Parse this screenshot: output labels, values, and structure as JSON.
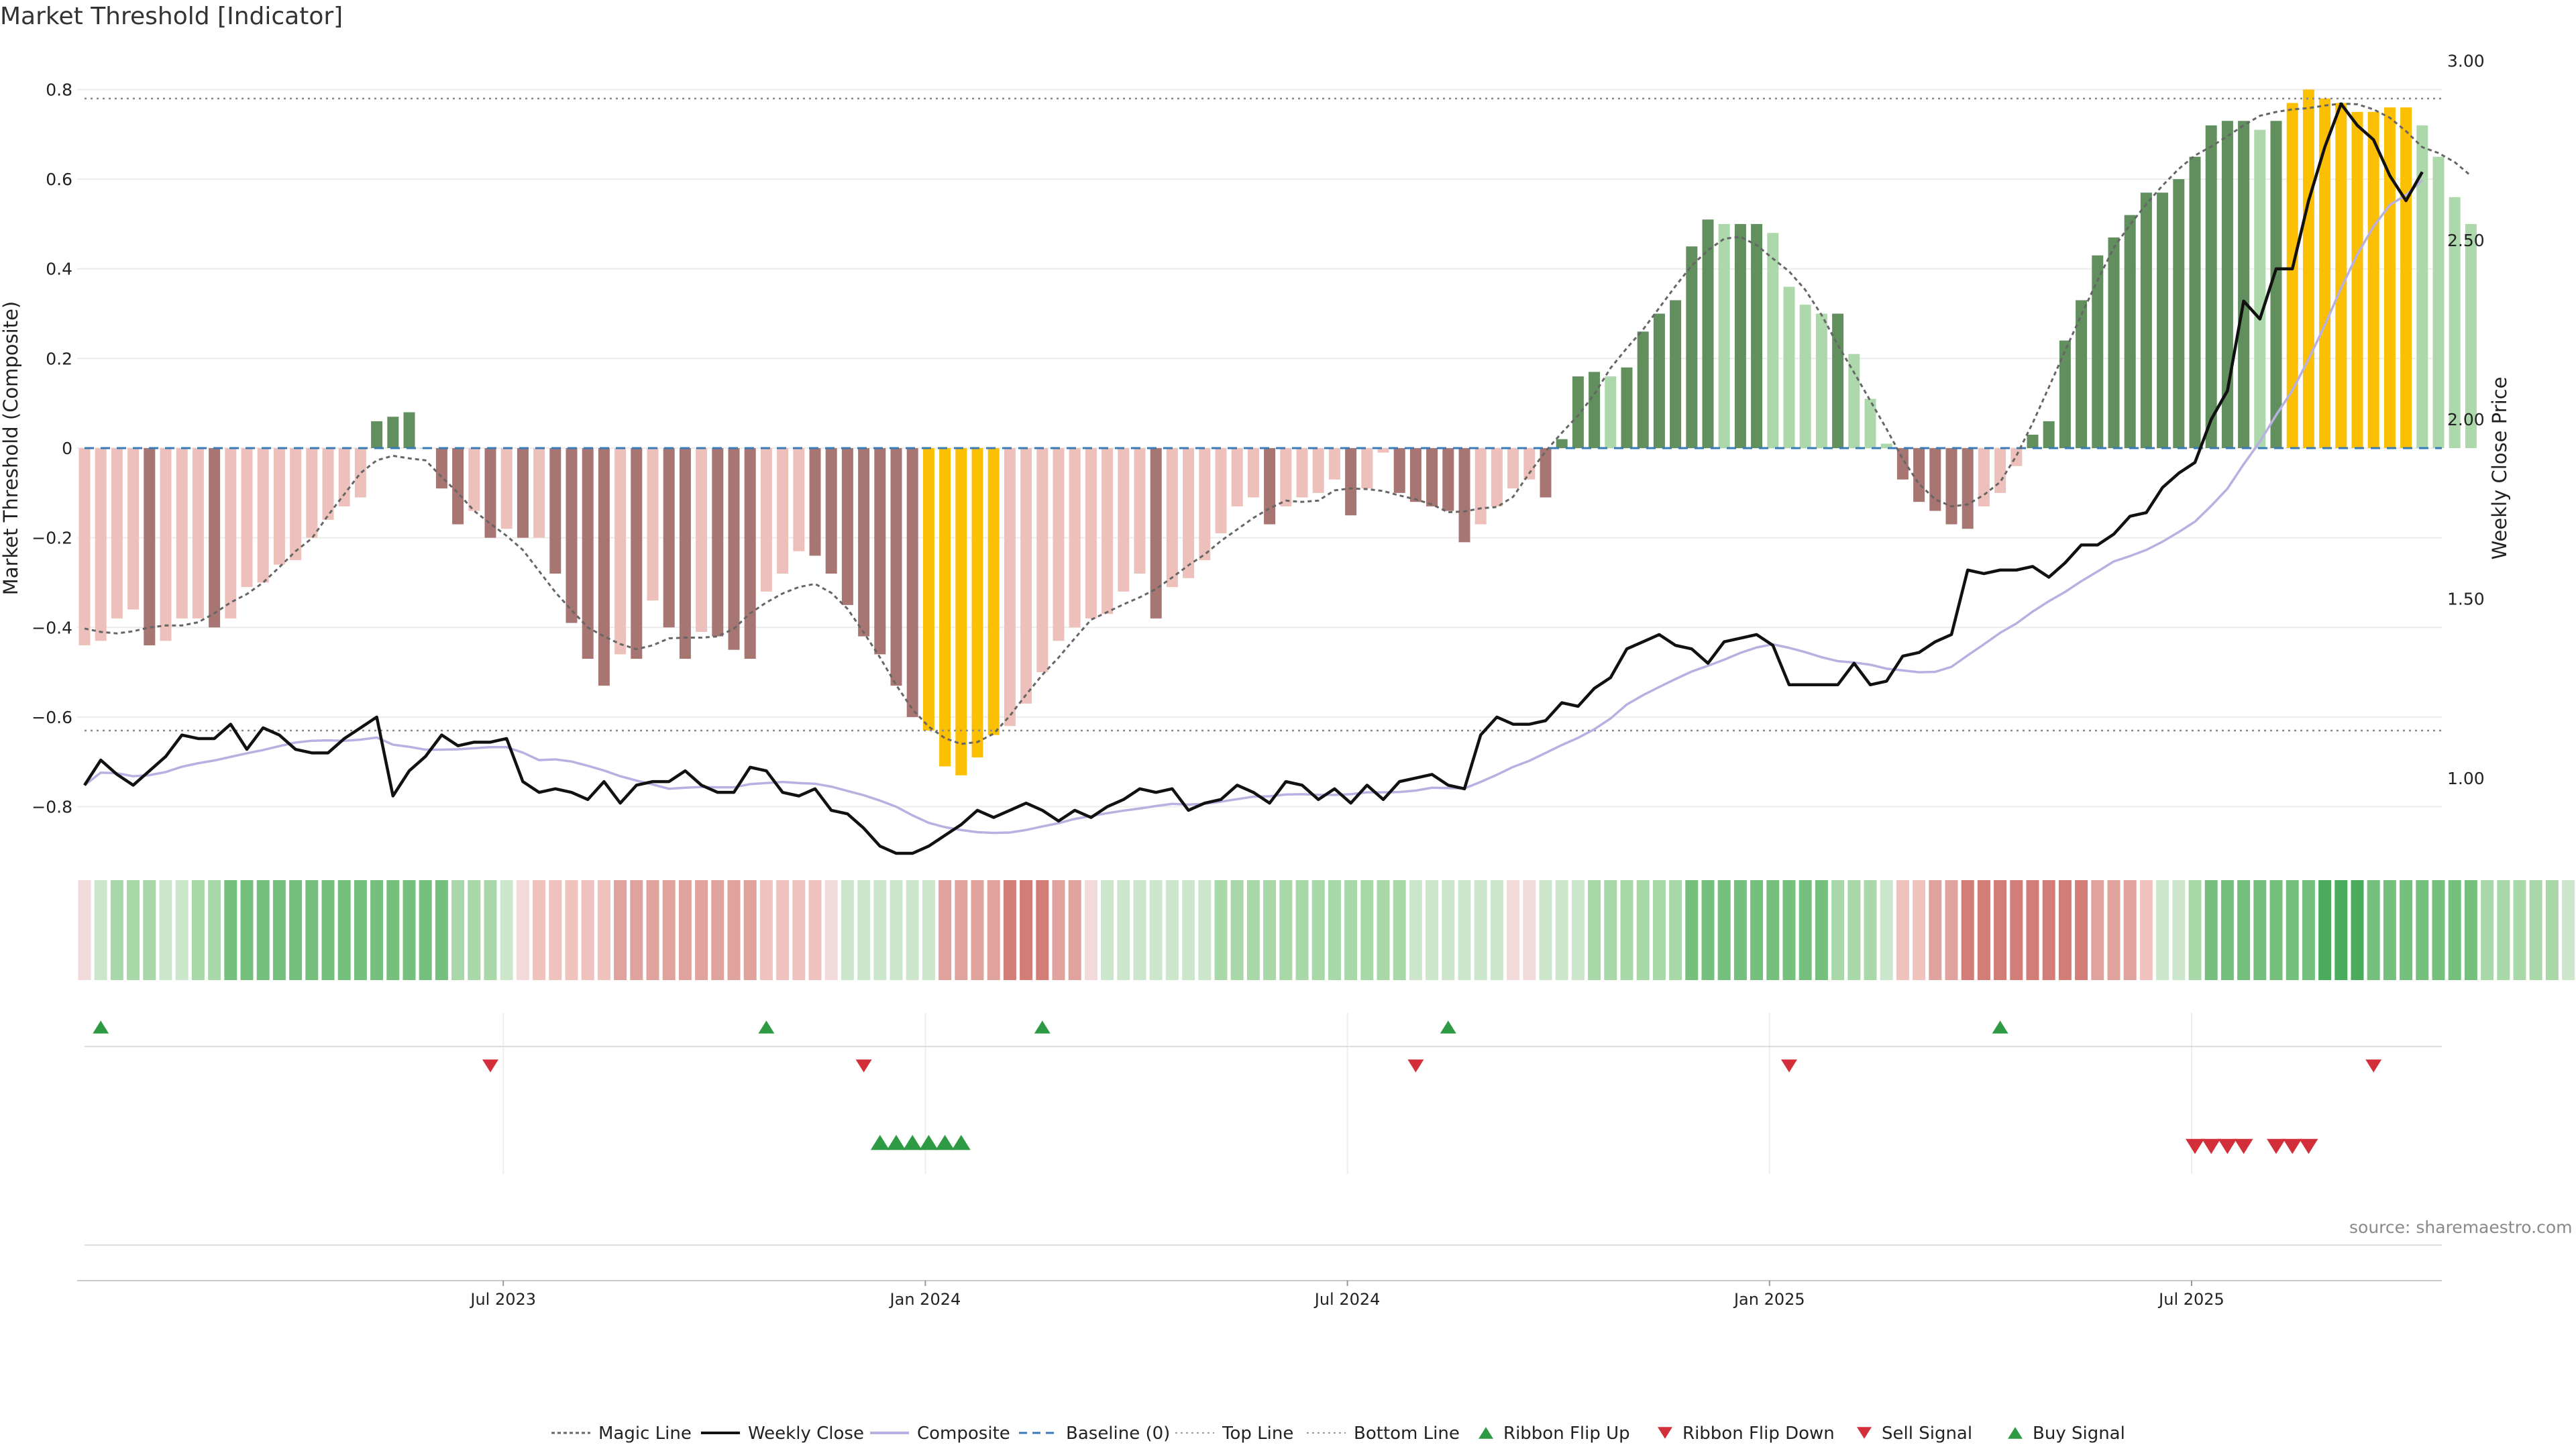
{
  "title": "Market Threshold [Indicator]",
  "source": "source: sharemaestro.com",
  "chart_data": {
    "type": "bar",
    "title": "Market Threshold [Indicator]",
    "ylabel": "Market Threshold (Composite)",
    "y2label": "Weekly Close Price",
    "ylim": [
      -0.88,
      0.88
    ],
    "y2lim": [
      0.82,
      3.02
    ],
    "yticks": [
      -0.8,
      -0.6,
      -0.4,
      -0.2,
      0,
      0.2,
      0.4,
      0.6,
      0.8
    ],
    "ytick_labels": [
      "−0.8",
      "−0.6",
      "−0.4",
      "−0.2",
      "0",
      "0.2",
      "0.4",
      "0.6",
      "0.8"
    ],
    "y2ticks": [
      1.0,
      1.5,
      2.0,
      2.5,
      3.0
    ],
    "y2tick_labels": [
      "1.00",
      "1.50",
      "2.00",
      "2.50",
      "3.00"
    ],
    "x_ticks": [
      {
        "label": "Jul 2023",
        "week": 26
      },
      {
        "label": "Jan 2024",
        "week": 52
      },
      {
        "label": "Jul 2024",
        "week": 78
      },
      {
        "label": "Jan 2025",
        "week": 104
      },
      {
        "label": "Jul 2025",
        "week": 130
      }
    ],
    "top_line": 0.78,
    "bottom_line": -0.63,
    "baseline": 0,
    "composite": [
      -0.44,
      -0.43,
      -0.38,
      -0.36,
      -0.44,
      -0.43,
      -0.38,
      -0.38,
      -0.4,
      -0.38,
      -0.31,
      -0.3,
      -0.26,
      -0.25,
      -0.2,
      -0.16,
      -0.13,
      -0.11,
      0.06,
      0.07,
      0.08,
      0,
      -0.09,
      -0.17,
      -0.14,
      -0.2,
      -0.18,
      -0.2,
      -0.2,
      -0.28,
      -0.39,
      -0.47,
      -0.53,
      -0.46,
      -0.47,
      -0.34,
      -0.4,
      -0.47,
      -0.41,
      -0.42,
      -0.45,
      -0.47,
      -0.32,
      -0.28,
      -0.23,
      -0.24,
      -0.28,
      -0.35,
      -0.42,
      -0.46,
      -0.53,
      -0.6,
      -0.63,
      -0.71,
      -0.73,
      -0.69,
      -0.64,
      -0.62,
      -0.57,
      -0.5,
      -0.43,
      -0.4,
      -0.38,
      -0.37,
      -0.32,
      -0.28,
      -0.38,
      -0.31,
      -0.29,
      -0.25,
      -0.19,
      -0.13,
      -0.11,
      -0.17,
      -0.13,
      -0.11,
      -0.1,
      -0.07,
      -0.15,
      -0.09,
      -0.01,
      -0.1,
      -0.12,
      -0.13,
      -0.14,
      -0.21,
      -0.17,
      -0.13,
      -0.09,
      -0.07,
      -0.11,
      0.02,
      0.16,
      0.17,
      0.16,
      0.18,
      0.26,
      0.3,
      0.33,
      0.45,
      0.51,
      0.5,
      0.5,
      0.5,
      0.48,
      0.36,
      0.32,
      0.3,
      0.3,
      0.21,
      0.11,
      0.01,
      -0.07,
      -0.12,
      -0.14,
      -0.17,
      -0.18,
      -0.13,
      -0.1,
      -0.04,
      0.03,
      0.06,
      0.24,
      0.33,
      0.43,
      0.47,
      0.52,
      0.57,
      0.57,
      0.6,
      0.65,
      0.72,
      0.73,
      0.73,
      0.71,
      0.73,
      0.77,
      0.8,
      0.78,
      0.77,
      0.75,
      0.75,
      0.76,
      0.76,
      0.72,
      0.65,
      0.56,
      0.5
    ],
    "weekly_close": [
      0.98,
      1.05,
      1.01,
      0.98,
      1.02,
      1.06,
      1.12,
      1.11,
      1.11,
      1.15,
      1.08,
      1.14,
      1.12,
      1.08,
      1.07,
      1.07,
      1.11,
      1.14,
      1.17,
      0.95,
      1.02,
      1.06,
      1.12,
      1.09,
      1.1,
      1.1,
      1.11,
      0.99,
      0.96,
      0.97,
      0.96,
      0.94,
      0.99,
      0.93,
      0.98,
      0.99,
      0.99,
      1.02,
      0.98,
      0.96,
      0.96,
      1.03,
      1.02,
      0.96,
      0.95,
      0.97,
      0.91,
      0.9,
      0.86,
      0.81,
      0.79,
      0.79,
      0.81,
      0.84,
      0.87,
      0.91,
      0.89,
      0.91,
      0.93,
      0.91,
      0.88,
      0.91,
      0.89,
      0.92,
      0.94,
      0.97,
      0.96,
      0.97,
      0.91,
      0.93,
      0.94,
      0.98,
      0.96,
      0.93,
      0.99,
      0.98,
      0.94,
      0.97,
      0.93,
      0.98,
      0.94,
      0.99,
      1.0,
      1.01,
      0.98,
      0.97,
      1.12,
      1.17,
      1.15,
      1.15,
      1.16,
      1.21,
      1.2,
      1.25,
      1.28,
      1.36,
      1.38,
      1.4,
      1.37,
      1.36,
      1.32,
      1.38,
      1.39,
      1.4,
      1.37,
      1.26,
      1.26,
      1.26,
      1.26,
      1.32,
      1.26,
      1.27,
      1.34,
      1.35,
      1.38,
      1.4,
      1.58,
      1.57,
      1.58,
      1.58,
      1.59,
      1.56,
      1.6,
      1.65,
      1.65,
      1.68,
      1.73,
      1.74,
      1.81,
      1.85,
      1.88,
      2.0,
      2.08,
      2.33,
      2.28,
      2.42,
      2.42,
      2.61,
      2.76,
      2.88,
      2.82,
      2.78,
      2.68,
      2.61,
      2.69
    ]
  },
  "ribbon": {
    "levels": [
      0,
      1,
      2,
      2,
      2,
      1,
      1,
      2,
      2,
      3,
      3,
      3,
      3,
      3,
      3,
      3,
      3,
      3,
      3,
      3,
      3,
      3,
      3,
      2,
      2,
      2,
      1,
      0,
      -1,
      -1,
      -1,
      -1,
      -1,
      -2,
      -2,
      -2,
      -2,
      -2,
      -2,
      -2,
      -2,
      -2,
      -1,
      -1,
      -1,
      -1,
      0,
      1,
      1,
      1,
      1,
      1,
      1,
      -2,
      -2,
      -2,
      -2,
      -3,
      -3,
      -3,
      -2,
      -2,
      0,
      1,
      1,
      1,
      1,
      1,
      1,
      1,
      2,
      2,
      2,
      2,
      2,
      2,
      2,
      2,
      2,
      2,
      2,
      2,
      1,
      1,
      1,
      1,
      1,
      1,
      0,
      0,
      1,
      1,
      1,
      2,
      2,
      2,
      2,
      2,
      2,
      3,
      3,
      3,
      3,
      3,
      3,
      3,
      3,
      3,
      2,
      2,
      2,
      1,
      -1,
      -1,
      -2,
      -2,
      -3,
      -3,
      -3,
      -3,
      -3,
      -3,
      -3,
      -3,
      -2,
      -2,
      -2,
      -1,
      1,
      1,
      2,
      3,
      3,
      3,
      3,
      3,
      3,
      3,
      4,
      4,
      4,
      3,
      3,
      3,
      3,
      3,
      3,
      3,
      2,
      2,
      2,
      2,
      2,
      1,
      1,
      -1,
      -1
    ]
  },
  "signals": {
    "ribbon_flip_up": [
      1,
      42,
      59,
      84,
      118
    ],
    "ribbon_flip_down": [
      25,
      48,
      82,
      105,
      141
    ],
    "buy_signal": [
      49,
      50,
      51,
      52,
      53,
      54
    ],
    "sell_signal": [
      130,
      131,
      132,
      133,
      135,
      136,
      137
    ]
  },
  "legend": [
    {
      "key": "magic",
      "label": "Magic Line"
    },
    {
      "key": "close",
      "label": "Weekly Close"
    },
    {
      "key": "composite",
      "label": "Composite"
    },
    {
      "key": "baseline",
      "label": "Baseline (0)"
    },
    {
      "key": "top",
      "label": "Top Line"
    },
    {
      "key": "bottom",
      "label": "Bottom Line"
    },
    {
      "key": "flipup",
      "label": "Ribbon Flip Up"
    },
    {
      "key": "flipdown",
      "label": "Ribbon Flip Down"
    },
    {
      "key": "sell",
      "label": "Sell Signal"
    },
    {
      "key": "buy",
      "label": "Buy Signal"
    }
  ],
  "colors": {
    "strong_neg": "#a87672",
    "weak_neg": "#eec0bb",
    "strong_pos": "#618f5e",
    "weak_pos": "#acd8ab",
    "extreme": "#fbbf03",
    "close": "#111111",
    "composite": "#b8b0e0",
    "magic": "#666666",
    "baseline": "#3a7ab6",
    "buy": "#2e9a44",
    "sell": "#d22f3a"
  }
}
